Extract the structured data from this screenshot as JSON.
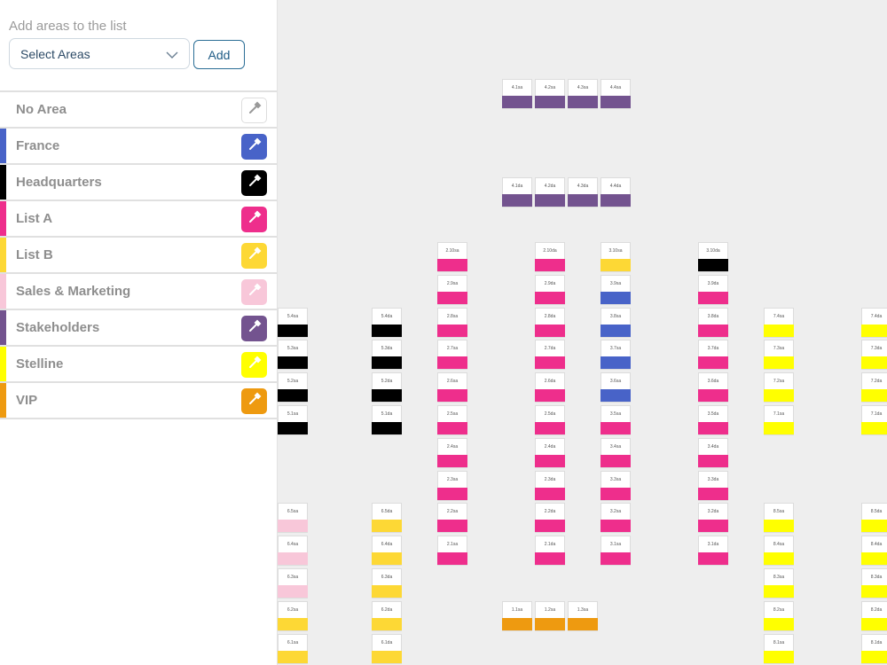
{
  "panel": {
    "title": "Add areas to the list",
    "select_placeholder": "Select Areas",
    "add_label": "Add"
  },
  "areas": [
    {
      "name": "No Area",
      "color": "#ffffff"
    },
    {
      "name": "France",
      "color": "#4863c8"
    },
    {
      "name": "Headquarters",
      "color": "#000000"
    },
    {
      "name": "List A",
      "color": "#ee2e8c"
    },
    {
      "name": "List B",
      "color": "#fdd835"
    },
    {
      "name": "Sales & Marketing",
      "color": "#f8c7d9"
    },
    {
      "name": "Stakeholders",
      "color": "#73538f"
    },
    {
      "name": "Stelline",
      "color": "#ffff00"
    },
    {
      "name": "VIP",
      "color": "#ee9a10"
    }
  ],
  "seat_groups": [
    {
      "seats": [
        "4.1sa",
        "4.2sa",
        "4.3sa",
        "4.4sa"
      ],
      "area": "Stakeholders"
    },
    {
      "seats": [
        "4.1da",
        "4.2da",
        "4.3da",
        "4.4da"
      ],
      "area": "Stakeholders"
    },
    {
      "seats": [
        "5.4sa",
        "5.3sa",
        "5.2sa",
        "5.1sa"
      ],
      "area": "Headquarters"
    },
    {
      "seats": [
        "6.5sa",
        "6.4sa",
        "6.3sa"
      ],
      "area": "Sales & Marketing"
    },
    {
      "seats": [
        "6.2sa",
        "6.1sa"
      ],
      "area": "List B"
    },
    {
      "seats": [
        "5.4da",
        "5.3da",
        "5.2da",
        "5.1da"
      ],
      "area": "Headquarters"
    },
    {
      "seats": [
        "6.5da",
        "6.4da",
        "6.3da",
        "6.2da",
        "6.1da"
      ],
      "area": "List B"
    },
    {
      "seats": [
        "2.10sa",
        "2.9sa",
        "2.8sa",
        "2.7sa",
        "2.6sa",
        "2.5sa",
        "2.4sa",
        "2.3sa",
        "2.2sa",
        "2.1sa"
      ],
      "area": "List A"
    },
    {
      "seats": [
        "2.10da",
        "2.9da",
        "2.8da",
        "2.7da",
        "2.6da",
        "2.5da",
        "2.4da",
        "2.3da",
        "2.2da",
        "2.1da"
      ],
      "area": "List A"
    },
    {
      "seats": [
        "3.10sa"
      ],
      "area": "List B"
    },
    {
      "seats": [
        "3.9sa",
        "3.8sa",
        "3.7sa",
        "3.6sa"
      ],
      "area": "France"
    },
    {
      "seats": [
        "3.5sa",
        "3.4sa",
        "3.3sa",
        "3.2sa",
        "3.1sa"
      ],
      "area": "List A"
    },
    {
      "seats": [
        "3.10da"
      ],
      "area": "Headquarters"
    },
    {
      "seats": [
        "3.9da",
        "3.8da",
        "3.7da",
        "3.6da",
        "3.5da",
        "3.4da",
        "3.3da",
        "3.2da",
        "3.1da"
      ],
      "area": "List A"
    },
    {
      "seats": [
        "7.4sa",
        "7.3sa",
        "7.2sa",
        "7.1sa"
      ],
      "area": "Stelline"
    },
    {
      "seats": [
        "8.5sa",
        "8.4sa",
        "8.3sa",
        "8.2sa",
        "8.1sa"
      ],
      "area": "Stelline"
    },
    {
      "seats": [
        "7.4da",
        "7.3da",
        "7.2da",
        "7.1da"
      ],
      "area": "Stelline"
    },
    {
      "seats": [
        "8.5da",
        "8.4da",
        "8.3da",
        "8.2da",
        "8.1da"
      ],
      "area": "Stelline"
    },
    {
      "seats": [
        "1.1sa",
        "1.2sa",
        "1.3sa"
      ],
      "area": "VIP"
    }
  ]
}
